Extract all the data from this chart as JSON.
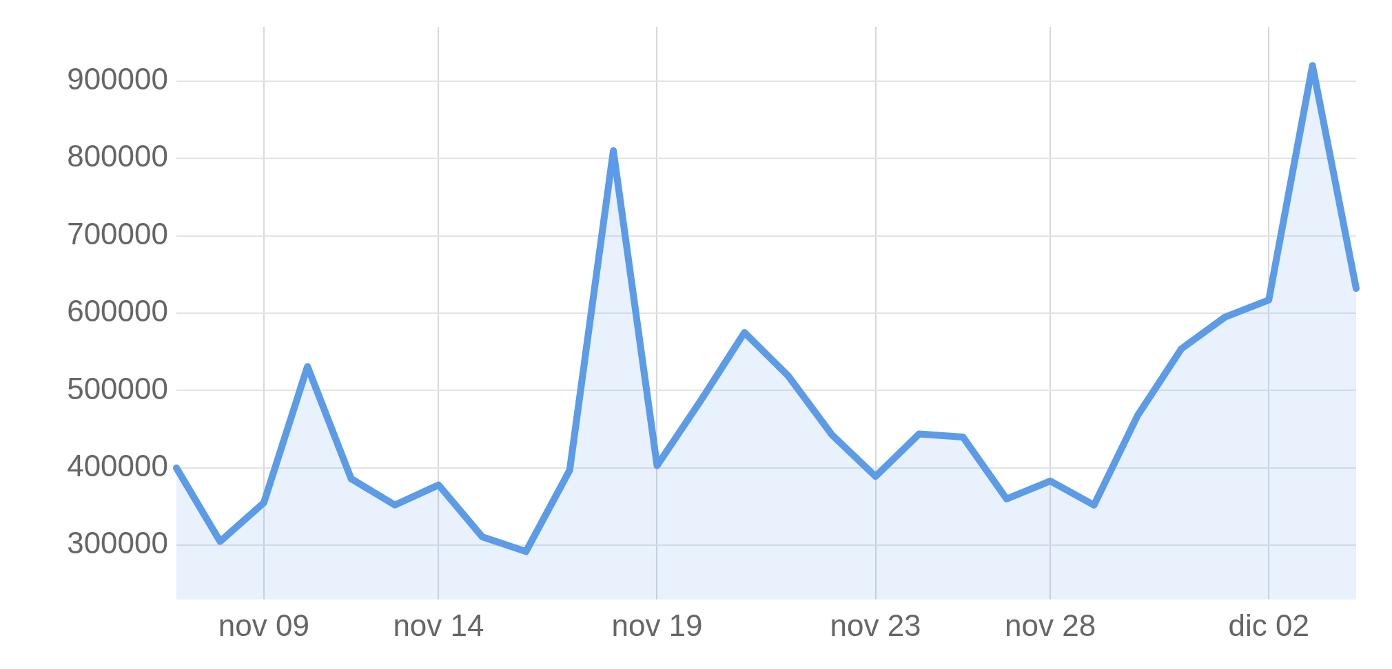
{
  "chart_data": {
    "type": "area",
    "categories": [
      null,
      null,
      "nov 09",
      null,
      null,
      null,
      "nov 14",
      null,
      null,
      null,
      null,
      "nov 19",
      null,
      null,
      null,
      null,
      "nov 23",
      null,
      null,
      null,
      "nov 28",
      null,
      null,
      null,
      null,
      "dic 02",
      null,
      null
    ],
    "series": [
      {
        "color": "#5b9be8",
        "values": [
          400000,
          305000,
          355000,
          531000,
          386000,
          352000,
          378000,
          311000,
          292000,
          397000,
          810000,
          403000,
          487000,
          575000,
          519000,
          443000,
          389000,
          444000,
          440000,
          360000,
          383000,
          352000,
          468000,
          554000,
          595000,
          617000,
          920000,
          632000
        ]
      }
    ],
    "ylim": [
      230000,
      970000
    ],
    "yticks": [
      300000,
      400000,
      500000,
      600000,
      700000,
      800000,
      900000
    ],
    "grid": true,
    "legend": false,
    "marker": "none",
    "line_style": "solid"
  }
}
